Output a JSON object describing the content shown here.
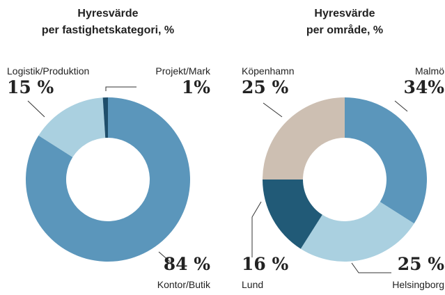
{
  "chart_data": [
    {
      "type": "donut",
      "title": "Hyresvärde",
      "subtitle": "per fastighetskategori, %",
      "categories": [
        "Kontor/Butik",
        "Logistik/Produktion",
        "Projekt/Mark"
      ],
      "values": [
        84,
        15,
        1
      ],
      "value_labels": [
        "84 %",
        "15 %",
        "1%"
      ],
      "colors": [
        "#5b96bb",
        "#aad0e0",
        "#1f4e6b"
      ]
    },
    {
      "type": "donut",
      "title": "Hyresvärde",
      "subtitle": "per område, %",
      "categories": [
        "Malmö",
        "Helsingborg",
        "Lund",
        "Köpenhamn"
      ],
      "values": [
        34,
        25,
        16,
        25
      ],
      "value_labels": [
        "34%",
        "25 %",
        "16 %",
        "25 %"
      ],
      "colors": [
        "#5b96bb",
        "#aad0e0",
        "#215a77",
        "#cdbfb2"
      ]
    }
  ]
}
